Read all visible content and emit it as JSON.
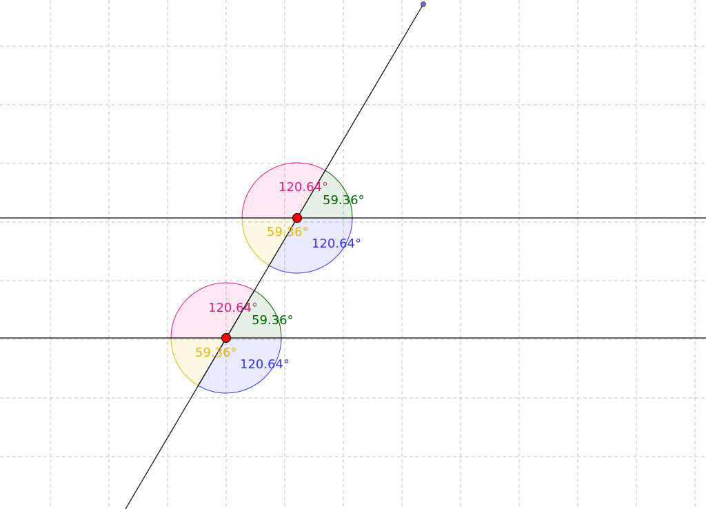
{
  "colors": {
    "obtuse_upper": "#e6197f",
    "acute_upper": "#006400",
    "acute_lower": "#e6b800",
    "obtuse_lower": "#3333ff",
    "point_fill": "#ff0000",
    "handle_fill": "#6a6acc"
  },
  "intersections": [
    {
      "id": "upper",
      "angles": {
        "top_left": "120.64°",
        "top_right": "59.36°",
        "bottom_left": "59.36°",
        "bottom_right": "120.64°"
      }
    },
    {
      "id": "lower",
      "angles": {
        "top_left": "120.64°",
        "top_right": "59.36°",
        "bottom_left": "59.36°",
        "bottom_right": "120.64°"
      }
    }
  ]
}
